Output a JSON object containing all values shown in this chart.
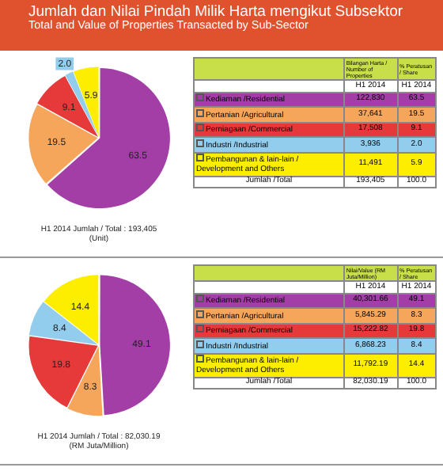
{
  "chart_data": [
    {
      "type": "pie",
      "title": "Jumlah dan Nilai Pindah Milik Harta mengikut Subsektor",
      "subtitle": "Total and Value of Properties Transacted by Sub-Sector",
      "categories": [
        "Kediaman /Residential",
        "Pertanian /Agricultural",
        "Perniagaan /Commercial",
        "Industri /Industrial",
        "Pembangunan & lain-lain / Development and Others"
      ],
      "values": [
        63.5,
        19.5,
        9.1,
        2.0,
        5.9
      ],
      "value_labels": [
        "63.5",
        "19.5",
        "9.1",
        "2.0",
        "5.9"
      ],
      "colors": [
        "#a23ea6",
        "#f5a65b",
        "#e63a3a",
        "#93cdee",
        "#fdee00"
      ],
      "totals": [
        "193,405",
        "100.0"
      ],
      "annotations": [
        "H1 2014",
        "Jumlah / Total : 193,405",
        "(Unit)",
        "Bilangan Harta / Number of Properties",
        "% Peratusan / Share",
        "H1 2014",
        "H1 2014",
        "Jumlah /Total",
        "122,830",
        "37,641",
        "17,508",
        "3,936",
        "11,491"
      ],
      "legend": "right"
    },
    {
      "type": "pie",
      "categories": [
        "Kediaman /Residential",
        "Pertanian /Agricultural",
        "Perniagaan /Commercial",
        "Industri /Industrial",
        "Pembangunan & lain-lain / Development and Others"
      ],
      "values": [
        49.1,
        8.3,
        19.8,
        8.4,
        14.4
      ],
      "value_labels": [
        "49.1",
        "8.3",
        "19.8",
        "8.4",
        "14.4"
      ],
      "colors": [
        "#a23ea6",
        "#f5a65b",
        "#e63a3a",
        "#93cdee",
        "#fdee00"
      ],
      "totals": [
        "82,030.19",
        "100.0"
      ],
      "annotations": [
        "H1 2014",
        "Jumlah / Total : 82,030.19",
        "(RM Juta/Million)",
        "Nilai/Value (RM Juta/Million)",
        "% Peratusan / Share",
        "H1 2014",
        "H1 2014",
        "Jumlah /Total",
        "40,301.66",
        "5,845.29",
        "15,222.82",
        "6,868.23",
        "11,792.19"
      ],
      "legend": "right"
    }
  ]
}
